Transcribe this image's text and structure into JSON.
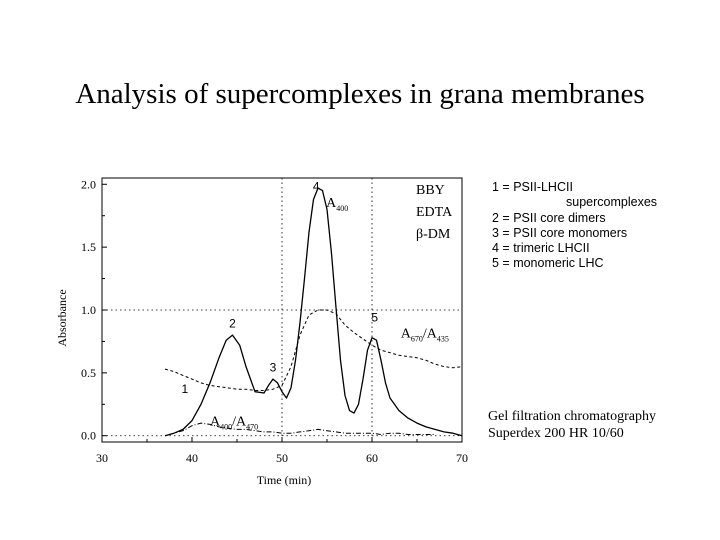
{
  "slide": {
    "title": "Analysis of supercomplexes in grana membranes"
  },
  "legend": {
    "line1": "1 = PSII-LHCII",
    "line1b": "supercomplexes",
    "line2": "2 = PSII core dimers",
    "line3": "3 = PSII core monomers",
    "line4": "4 = trimeric LHCII",
    "line5": "5 = monomeric LHC"
  },
  "method": {
    "line1": "Gel filtration chromatography",
    "line2": "Superdex 200 HR 10/60"
  },
  "chart_data": {
    "type": "line",
    "xlabel": "Time (min)",
    "ylabel": "Absorbance",
    "xlim": [
      30,
      70
    ],
    "ylim": [
      -0.05,
      2.05
    ],
    "x_ticks": [
      "30",
      "40",
      "50",
      "60",
      "70"
    ],
    "y_ticks": [
      "0.0",
      "0.5",
      "1.0",
      "1.5",
      "2.0"
    ],
    "y_tick_values": [
      0.0,
      0.5,
      1.0,
      1.5,
      2.0
    ],
    "dotted_guides": {
      "x": [
        50,
        60
      ],
      "y": [
        0.0,
        1.0
      ]
    },
    "buffer_labels": [
      "BBY",
      "EDTA",
      "β-DM"
    ],
    "peak_labels": [
      {
        "text": "1",
        "x": 39.2,
        "y": 0.34
      },
      {
        "text": "2",
        "x": 44.5,
        "y": 0.86
      },
      {
        "text": "3",
        "x": 49.0,
        "y": 0.51
      },
      {
        "text": "4",
        "x": 53.8,
        "y": 1.95
      },
      {
        "text": "5",
        "x": 60.3,
        "y": 0.91
      }
    ],
    "series": [
      {
        "label_main": "A",
        "label_sub": "400",
        "label_x": 54.9,
        "label_y": 1.82,
        "style": "solid",
        "x": [
          37.0,
          38.0,
          39.0,
          40.0,
          41.0,
          42.0,
          43.0,
          43.8,
          44.5,
          45.3,
          46.0,
          47.0,
          48.0,
          48.5,
          49.0,
          49.5,
          50.0,
          50.5,
          51.0,
          51.5,
          52.0,
          52.5,
          53.0,
          53.5,
          54.0,
          54.5,
          55.0,
          55.5,
          56.0,
          56.5,
          57.0,
          57.5,
          58.0,
          58.5,
          59.0,
          59.5,
          60.0,
          60.5,
          61.0,
          61.5,
          62.0,
          63.0,
          64.0,
          65.0,
          66.0,
          67.0,
          68.0,
          69.0,
          70.0
        ],
        "y": [
          0.0,
          0.02,
          0.05,
          0.12,
          0.25,
          0.42,
          0.62,
          0.76,
          0.8,
          0.72,
          0.55,
          0.35,
          0.34,
          0.4,
          0.45,
          0.42,
          0.35,
          0.3,
          0.38,
          0.6,
          0.9,
          1.25,
          1.62,
          1.88,
          1.97,
          1.95,
          1.8,
          1.45,
          1.02,
          0.6,
          0.32,
          0.2,
          0.18,
          0.25,
          0.45,
          0.68,
          0.78,
          0.76,
          0.6,
          0.42,
          0.3,
          0.2,
          0.14,
          0.1,
          0.07,
          0.05,
          0.03,
          0.02,
          0.0
        ]
      },
      {
        "label_main": "A",
        "label_sub": "670",
        "label_sep": "/A",
        "label_sub2": "435",
        "label_x": 63.2,
        "label_y": 0.78,
        "style": "dashed",
        "x": [
          37.0,
          38.0,
          39.0,
          40.0,
          41.0,
          42.0,
          43.0,
          44.0,
          45.0,
          46.0,
          47.0,
          48.0,
          49.0,
          50.0,
          51.0,
          52.0,
          53.0,
          54.0,
          55.0,
          56.0,
          57.0,
          58.0,
          59.0,
          60.0,
          61.0,
          62.0,
          63.0,
          64.0,
          65.0,
          66.0,
          67.0,
          68.0,
          69.0,
          70.0
        ],
        "y": [
          0.53,
          0.51,
          0.48,
          0.45,
          0.42,
          0.4,
          0.39,
          0.38,
          0.37,
          0.37,
          0.36,
          0.36,
          0.37,
          0.4,
          0.55,
          0.8,
          0.96,
          1.0,
          1.0,
          0.97,
          0.88,
          0.82,
          0.77,
          0.72,
          0.68,
          0.66,
          0.64,
          0.63,
          0.62,
          0.6,
          0.57,
          0.55,
          0.54,
          0.55
        ]
      },
      {
        "label_main": "A",
        "label_sub": "400",
        "label_sep": "/A",
        "label_sub2": "470",
        "label_x": 42.0,
        "label_y": 0.08,
        "style": "dashdot",
        "x": [
          37.5,
          38.0,
          39.0,
          40.0,
          41.0,
          42.0,
          43.0,
          44.0,
          45.0,
          46.0,
          47.0,
          48.0,
          49.0,
          50.0,
          51.0,
          52.0,
          53.0,
          54.0,
          55.0,
          56.0,
          57.0,
          58.0,
          59.0,
          60.0,
          61.0,
          62.0,
          63.0,
          64.0,
          65.0,
          66.0,
          67.0
        ],
        "y": [
          0.01,
          0.02,
          0.04,
          0.08,
          0.1,
          0.09,
          0.07,
          0.06,
          0.05,
          0.05,
          0.04,
          0.03,
          0.03,
          0.02,
          0.02,
          0.03,
          0.04,
          0.05,
          0.04,
          0.03,
          0.02,
          0.02,
          0.02,
          0.02,
          0.01,
          0.02,
          0.02,
          0.01,
          0.01,
          0.01,
          0.01
        ]
      }
    ]
  }
}
